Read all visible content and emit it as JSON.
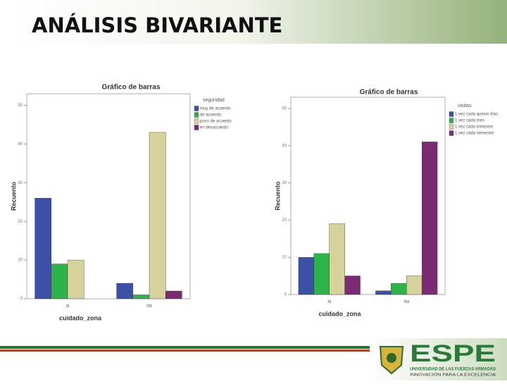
{
  "title": "ANÁLISIS BIVARIANTE",
  "footer": {
    "brand": "ESPE",
    "university": "UNIVERSIDAD DE LAS FUERZAS ARMADAS",
    "motto": "INNOVACIÓN PARA LA EXCELENCIA"
  },
  "chart_data": [
    {
      "type": "bar",
      "title": "Gráfico de barras",
      "x_label": "cuidado_zona",
      "y_label": "Recuento",
      "categories": [
        "si",
        "no"
      ],
      "legend_title": "seguridad",
      "series": [
        {
          "name": "muy de acuerdo",
          "color": "#3d50a8",
          "values": [
            26,
            4
          ]
        },
        {
          "name": "de acuerdo",
          "color": "#2db34a",
          "values": [
            9,
            1
          ]
        },
        {
          "name": "poco de acuerdo",
          "color": "#d6d29c",
          "values": [
            10,
            43
          ]
        },
        {
          "name": "en desacuerdo",
          "color": "#7b2a74",
          "values": [
            0,
            2
          ]
        }
      ],
      "ylim": [
        0,
        53
      ],
      "yticks": [
        0,
        10,
        20,
        30,
        40,
        50
      ]
    },
    {
      "type": "bar",
      "title": "Gráfico de barras",
      "x_label": "cuidado_zona",
      "y_label": "Recuento",
      "categories": [
        "si",
        "no"
      ],
      "legend_title": "visitas",
      "series": [
        {
          "name": "1 vez cada quince días",
          "color": "#3d50a8",
          "values": [
            10,
            1
          ]
        },
        {
          "name": "1 vez cada mes",
          "color": "#2db34a",
          "values": [
            11,
            3
          ]
        },
        {
          "name": "1 vez cada trimestre",
          "color": "#d6d29c",
          "values": [
            19,
            5
          ]
        },
        {
          "name": "1 vez cada semestre",
          "color": "#7b2a74",
          "values": [
            5,
            41
          ]
        }
      ],
      "ylim": [
        0,
        53
      ],
      "yticks": [
        0,
        10,
        20,
        30,
        40,
        50
      ]
    }
  ]
}
